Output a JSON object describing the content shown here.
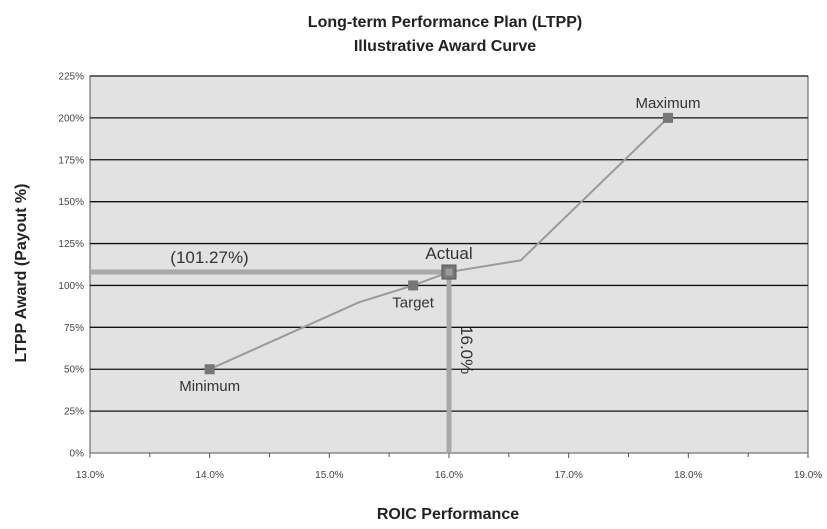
{
  "chart_data": {
    "type": "line",
    "title_lines": [
      "Long-term Performance Plan (LTPP)",
      "Illustrative Award Curve"
    ],
    "xlabel": "ROIC Performance",
    "ylabel": "LTPP Award (Payout %)",
    "xlim": [
      13.0,
      19.0
    ],
    "ylim": [
      0,
      225
    ],
    "x_ticks": [
      13.0,
      14.0,
      15.0,
      16.0,
      17.0,
      18.0,
      19.0
    ],
    "x_tick_labels": [
      "13.0%",
      "14.0%",
      "15.0%",
      "16.0%",
      "17.0%",
      "18.0%",
      "19.0%"
    ],
    "y_ticks": [
      0,
      25,
      50,
      75,
      100,
      125,
      150,
      175,
      200,
      225
    ],
    "y_tick_labels": [
      "0%",
      "25%",
      "50%",
      "75%",
      "100%",
      "125%",
      "150%",
      "175%",
      "200%",
      "225%"
    ],
    "grid": true,
    "series": [
      {
        "x": [
          14.0,
          15.25,
          15.7,
          16.0,
          16.6,
          17.83
        ],
        "y": [
          50,
          90,
          100,
          108,
          115,
          200
        ]
      }
    ],
    "markers": [
      {
        "label": "Minimum",
        "x": 14.0,
        "y": 50,
        "label_position": "below"
      },
      {
        "label": "Target",
        "x": 15.7,
        "y": 100,
        "label_position": "below"
      },
      {
        "label": "Actual",
        "x": 16.0,
        "y": 108,
        "label_position": "above",
        "highlight": true
      },
      {
        "label": "Maximum",
        "x": 17.83,
        "y": 200,
        "label_position": "above"
      }
    ],
    "reference_lines": {
      "horizontal": {
        "y": 108,
        "label": "(101.27%)"
      },
      "vertical": {
        "x": 16.0,
        "label": "16.0%"
      }
    },
    "colors": {
      "plot_background": "#e2e2e2",
      "gridline": "#111111",
      "line": "#9a9a9a",
      "marker": "#777777",
      "reference": "#a8a8a8"
    }
  }
}
